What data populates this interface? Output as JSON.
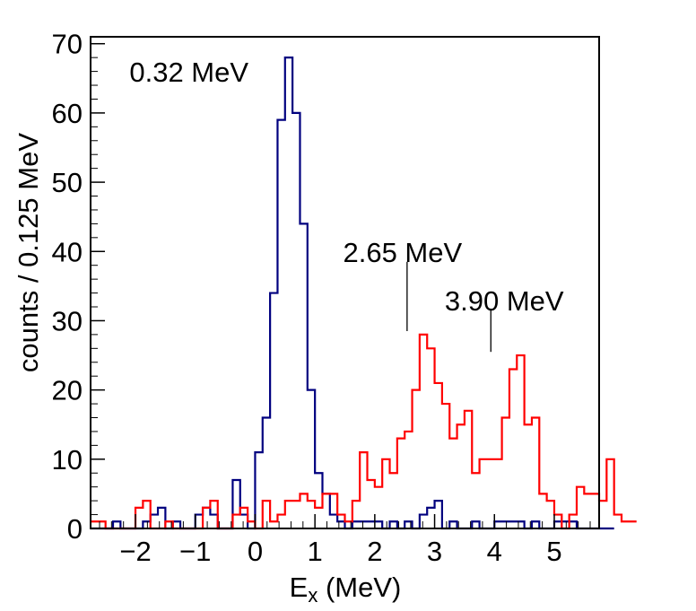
{
  "chart_data": {
    "type": "histogram",
    "xlabel_main": "E",
    "xlabel_sub": "x",
    "xlabel_rest": " (MeV)",
    "ylabel": "counts / 0.125 MeV",
    "xlim": [
      -2.75,
      5.75
    ],
    "ylim": [
      0,
      71
    ],
    "x_ticks": [
      -2,
      -1,
      0,
      1,
      2,
      3,
      4,
      5
    ],
    "x_tick_labels": [
      "−2",
      "−1",
      "0",
      "1",
      "2",
      "3",
      "4",
      "5"
    ],
    "y_ticks": [
      0,
      10,
      20,
      30,
      40,
      50,
      60,
      70
    ],
    "y_tick_labels": [
      "0",
      "10",
      "20",
      "30",
      "40",
      "50",
      "60",
      "70"
    ],
    "bin_start": -2.75,
    "bin_width": 0.125,
    "series": [
      {
        "color": "#00007f",
        "values": [
          0,
          0,
          0,
          1,
          0,
          0,
          0,
          1,
          2,
          3,
          0,
          1,
          0,
          0,
          2,
          3,
          2,
          0,
          0,
          7,
          2,
          0,
          11,
          16,
          34,
          59,
          68,
          60,
          44,
          20,
          8,
          5,
          2,
          1,
          0,
          1,
          1,
          1,
          1,
          0,
          1,
          0,
          1,
          0,
          2,
          3,
          4,
          0,
          1,
          0,
          0,
          1,
          0,
          0,
          1,
          1,
          1,
          1,
          0,
          1,
          0,
          0,
          1,
          1,
          1,
          0,
          0,
          0,
          0,
          0
        ]
      },
      {
        "color": "#ff0000",
        "values": [
          1,
          1,
          0,
          0,
          0,
          0,
          3,
          4,
          0,
          0,
          1,
          0,
          0,
          0,
          0,
          3,
          4,
          0,
          0,
          2,
          3,
          1,
          0,
          4,
          1,
          2,
          4,
          4,
          5,
          4,
          3,
          5,
          5,
          2,
          1,
          4,
          11,
          7,
          6,
          10,
          8,
          13,
          14,
          20,
          28,
          26,
          21,
          18,
          13,
          15,
          17,
          8,
          10,
          10,
          10,
          16,
          23,
          25,
          15,
          16,
          5,
          4,
          2,
          0,
          2,
          6,
          5,
          5,
          4,
          10,
          2,
          1,
          1
        ]
      }
    ],
    "annotations": [
      {
        "text": "0.32 MeV",
        "x": -2.1,
        "y": 64.5,
        "line": null
      },
      {
        "text": "2.65 MeV",
        "x": 1.47,
        "y": 38.5,
        "line": [
          2.54,
          38.5,
          2.54,
          28.5
        ]
      },
      {
        "text": "3.90 MeV",
        "x": 3.17,
        "y": 31.5,
        "line": [
          3.94,
          31.5,
          3.94,
          25.5
        ]
      }
    ]
  }
}
